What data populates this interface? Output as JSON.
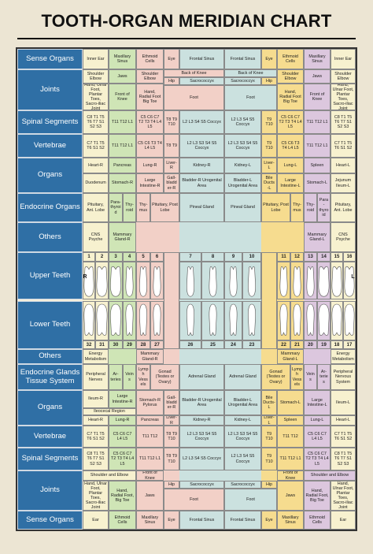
{
  "title": "TOOTH-ORGAN MERIDIAN CHART",
  "top_rows": [
    {
      "label": "Sense Organs",
      "cells": [
        "Inner Ear",
        "Maxillary Sinus",
        "Ethmoid Cells",
        "Eye",
        "Frontal Sinus",
        "Frontal Sinus",
        "Eye",
        "Ethmoid Cells",
        "Maxillary Sinus",
        "Inner Ear"
      ]
    },
    {
      "label": "Joints",
      "cells": [
        "Shoulder Elbow",
        "Jaws",
        "Shoulder Elbow",
        "Back of Knee",
        "Back of Knee",
        "Shoulder Elbow",
        "Jaws",
        "Shoulder Elbow",
        "Hand, Ulnar Foot, Plantar Toes, Sacro-iliac Joint",
        "Front of Knee",
        "Hand, Radial Foot Big Toe",
        "Hip",
        "Sacrococcyx",
        "Sacrococcyx",
        "Hip",
        "Foot",
        "Foot",
        "Hand, Radial Foot Big Toe",
        "Front of Knee",
        "Hand, Ulnar Foot, Plantar Toes, Sacro-iliac Joint"
      ]
    },
    {
      "label": "Spinal Segments",
      "cells": [
        "C8 T1 T5 T6 T7 S1 S2 S3",
        "T11 T12 L1",
        "C5 C6 C7 T2 T3 T4 L4 L5",
        "T8 T9 T10",
        "L2 L3 S4 S5 Coccyx",
        "L2 L3 S4 S5 Coccyx",
        "T9 T10",
        "C5 C6 C7 T2 T3 T4 L4 L5",
        "T11 T12 L1",
        "C8 T1 T5 T6 T7 S1 S2 S3"
      ]
    },
    {
      "label": "Vertebrae",
      "cells": [
        "C7 T1 T5 T6 S1 S2",
        "T11 T12 L1",
        "C5 C6 T3 T4 L4 L5",
        "T8 T9",
        "L2 L3 S3 S4 S5 Coccyx",
        "L2 L3 S3 S4 S5 Coccyx",
        "T9 T10",
        "C5 C6 T3 T4 L4 L5",
        "T11 T12 L1",
        "C7 T1 T5 T6 S1 S2"
      ]
    },
    {
      "label": "Organs",
      "cells": [
        "Heart-R",
        "Pancreas",
        "Lung-R",
        "Liver-R",
        "Kidney-R",
        "Kidney-L",
        "Liver-L",
        "Lung-L",
        "Spleen",
        "Heart-L",
        "Duodenum",
        "Stomach-R",
        "Large Intestine-R",
        "Gall-bladder-R",
        "Bladder-R Urogenital Area",
        "Bladder-L Urogenital Area",
        "Bile Ducts -L",
        "Large Intestine-L",
        "Stomach-L",
        "Jejunum Ileum-L"
      ]
    },
    {
      "label": "Endocrine Organs",
      "cells": [
        "Pituitary, Ant. Lobe",
        "Para-thyroid",
        "Thy-roid",
        "Thy-mus",
        "Pituitary, Post Lobe",
        "Pineal Gland",
        "Pineal Gland",
        "Pituitary, Post Lobe",
        "Thy-mus",
        "Thy-roid",
        "Para-thyroid",
        "Pituitary, Ant. Lobe"
      ]
    },
    {
      "label": "Others",
      "cells": [
        "CNS Psyche",
        "Mammary Gland-R",
        "Mammary Gland-L",
        "CNS Psyche"
      ]
    }
  ],
  "teeth": {
    "upper_label": "Upper Teeth",
    "lower_label": "Lower Teeth",
    "right_side": "R",
    "left_side": "L",
    "upper_numbers": [
      1,
      2,
      3,
      4,
      5,
      6,
      7,
      8,
      9,
      10,
      11,
      12,
      13,
      14,
      15,
      16
    ],
    "lower_numbers": [
      32,
      31,
      30,
      29,
      28,
      27,
      26,
      25,
      24,
      23,
      22,
      21,
      20,
      19,
      18,
      17
    ]
  },
  "bottom_rows": [
    {
      "label": "Others",
      "cells": [
        "Energy Metabolism",
        "Mammary Gland-R",
        "Mammary Gland-L",
        "Energy Metabolism"
      ]
    },
    {
      "label": "Endocrine Glands Tissue System",
      "cells": [
        "Peripheral Nerves",
        "Ar-teries",
        "Veins",
        "Lymph Vessels",
        "Gonad (Testes or Ovary)",
        "Adrenal Gland",
        "Adrenal Gland",
        "Gonad (Testes or Ovary)",
        "Lymph Vessels",
        "Veins",
        "Ar-teries",
        "Peripheral Nervous System"
      ]
    },
    {
      "label": "Organs",
      "cells": [
        "Ileum-R",
        "Large Intestine-R",
        "Stomach-R Pylorus",
        "Gall-bladder-R",
        "Bladder-R Urogenital Area",
        "Bladder-L Urogenital Area",
        "Bile Ducts-L",
        "Stomach-L",
        "Large Intestine-L",
        "Ileum-L",
        "Ileocecal Region",
        "Heart-R",
        "Lung-R",
        "Pancreas",
        "Liver-R",
        "Kidney-R",
        "Kidney-L",
        "Liver-L",
        "Spleen",
        "Lung-L",
        "Heart-L"
      ]
    },
    {
      "label": "Vertebrae",
      "cells": [
        "C7 T1 T5 T6 S1 S2",
        "C5 C6 C7 L4 L5",
        "T11 T12",
        "T8 T9 T10",
        "L2 L3 S3 S4 S5 Coccyx",
        "L2 L3 S3 S4 S5 Coccyx",
        "T9 T10",
        "T11 T12",
        "C5 C6 C7 L4 L5",
        "C7 T1 T5 T6 S1 S2"
      ]
    },
    {
      "label": "Spinal Segments",
      "cells": [
        "C8 T1 T5 T6 T7 S1 S2 S3",
        "C5 C6 C7 T2 T3 T4 L4 L5",
        "T11 T12 L1",
        "T8 T9 T10",
        "L2 L3 S4 S5 Coccyx",
        "L2 L3 S4 S5 Coccyx",
        "T9 T10",
        "T11 T12 L1",
        "C5 C6 C7 T2 T3 T4 L4 L5",
        "C8 T1 T5 T6 T7 S1 S2 S3"
      ]
    },
    {
      "label": "Joints",
      "cells": [
        "Shoulder and Elbow",
        "Front of Knee",
        "Hip",
        "Sacrococcyx",
        "Sacrococcyx",
        "Hip",
        "Front of Knee",
        "Shoulder and Elbow",
        "Hand, Ulnar Foot, Plantar Toes, Sacro-iliac Joint",
        "Hand, Radial Foot, Big Toe",
        "Jaws",
        "Foot",
        "Foot",
        "Jaws",
        "Hand, Radial Foot, Big Toe",
        "Hand, Ulnar Foot, Plantar Toes, Sacro-iliac Joint"
      ]
    },
    {
      "label": "Sense Organs",
      "cells": [
        "Ear",
        "Ethmoid Cells",
        "Maxillary Sinus",
        "Eye",
        "Frontal Sinus",
        "Frontal Sinus",
        "Eye",
        "Maxillary Sinus",
        "Ethmoid Cells",
        "Ear"
      ]
    }
  ]
}
